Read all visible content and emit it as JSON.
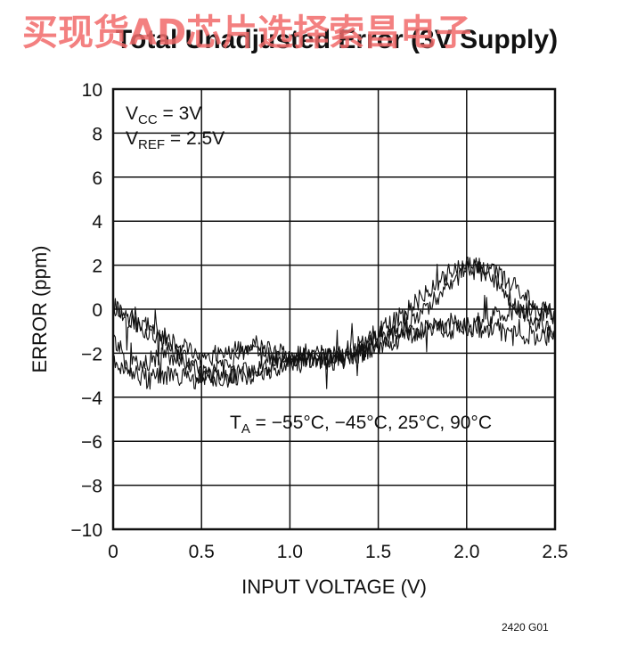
{
  "watermark": "买现货AD芯片选择索昌电子",
  "chart_data": {
    "type": "line",
    "title": "Total Unadjusted Error (3V Supply)",
    "xlabel": "INPUT VOLTAGE (V)",
    "ylabel": "ERROR (ppm)",
    "xlim": [
      0,
      2.5
    ],
    "ylim": [
      -10,
      10
    ],
    "x_ticks": [
      0,
      0.5,
      1.0,
      1.5,
      2.0,
      2.5
    ],
    "x_tick_labels": [
      "0",
      "0.5",
      "1.0",
      "1.5",
      "2.0",
      "2.5"
    ],
    "y_ticks": [
      -10,
      -8,
      -6,
      -4,
      -2,
      0,
      2,
      4,
      6,
      8,
      10
    ],
    "y_tick_labels": [
      "−10",
      "−8",
      "−6",
      "−4",
      "−2",
      "0",
      "2",
      "4",
      "6",
      "8",
      "10"
    ],
    "grid": true,
    "annotations": {
      "vcc": {
        "base": "V",
        "sub": "CC",
        "rest": " = 3V"
      },
      "vref": {
        "base": "V",
        "sub": "REF",
        "rest": " = 2.5V"
      },
      "ta": {
        "base": "T",
        "sub": "A",
        "rest": " = −55°C, −45°C, 25°C, 90°C"
      }
    },
    "figure_code": "2420 G01",
    "series": [
      {
        "values_x": [
          0,
          0.1,
          0.2,
          0.3,
          0.4,
          0.5,
          0.6,
          0.7,
          0.8,
          0.9,
          1.0,
          1.1,
          1.2,
          1.3,
          1.4,
          1.5,
          1.6,
          1.7,
          1.8,
          1.9,
          2.0,
          2.1,
          2.2,
          2.3,
          2.4,
          2.5
        ],
        "values_y": [
          0.2,
          -0.5,
          -1.0,
          -1.6,
          -2.2,
          -3.0,
          -3.0,
          -2.9,
          -2.8,
          -2.7,
          -2.5,
          -2.3,
          -2.2,
          -2.0,
          -1.6,
          -1.0,
          -0.5,
          0.2,
          1.0,
          1.7,
          2.0,
          1.9,
          1.5,
          0.8,
          0.2,
          -0.3
        ]
      },
      {
        "values_x": [
          0,
          0.1,
          0.2,
          0.3,
          0.4,
          0.5,
          0.6,
          0.7,
          0.8,
          0.9,
          1.0,
          1.1,
          1.2,
          1.3,
          1.4,
          1.5,
          1.6,
          1.7,
          1.8,
          1.9,
          2.0,
          2.1,
          2.2,
          2.3,
          2.4,
          2.5
        ],
        "values_y": [
          -2.5,
          -2.6,
          -2.4,
          -2.0,
          -2.3,
          -3.0,
          -3.2,
          -3.0,
          -3.0,
          -2.8,
          -2.6,
          -2.4,
          -2.2,
          -2.2,
          -2.0,
          -1.6,
          -1.4,
          -1.1,
          -0.8,
          -0.6,
          -0.8,
          -0.9,
          -1.0,
          -1.1,
          -1.2,
          -1.3
        ]
      },
      {
        "values_x": [
          0,
          0.1,
          0.2,
          0.3,
          0.4,
          0.5,
          0.6,
          0.7,
          0.8,
          0.9,
          1.0,
          1.1,
          1.2,
          1.3,
          1.4,
          1.5,
          1.6,
          1.7,
          1.8,
          1.9,
          2.0,
          2.1,
          2.2,
          2.3,
          2.4,
          2.5
        ],
        "values_y": [
          -1.2,
          -2.8,
          -3.2,
          -3.0,
          -3.1,
          -3.3,
          -2.6,
          -2.2,
          -2.0,
          -2.2,
          -2.2,
          -2.0,
          -2.1,
          -2.2,
          -1.8,
          -1.3,
          -1.1,
          -1.0,
          -0.9,
          -1.0,
          -0.9,
          -0.5,
          -0.2,
          0.0,
          -0.1,
          -0.3
        ]
      },
      {
        "values_x": [
          0,
          0.1,
          0.2,
          0.3,
          0.4,
          0.5,
          0.6,
          0.7,
          0.8,
          0.9,
          1.0,
          1.1,
          1.2,
          1.3,
          1.4,
          1.5,
          1.6,
          1.7,
          1.8,
          1.9,
          2.0,
          2.1,
          2.2,
          2.3,
          2.4,
          2.5
        ],
        "values_y": [
          0.0,
          -0.4,
          -0.7,
          -1.2,
          -1.6,
          -2.4,
          -2.0,
          -1.8,
          -1.6,
          -2.0,
          -2.0,
          -2.2,
          -2.4,
          -2.3,
          -2.0,
          -1.6,
          -1.0,
          -0.6,
          0.3,
          1.2,
          1.8,
          1.7,
          1.0,
          0.0,
          -0.6,
          -1.0
        ]
      }
    ]
  }
}
